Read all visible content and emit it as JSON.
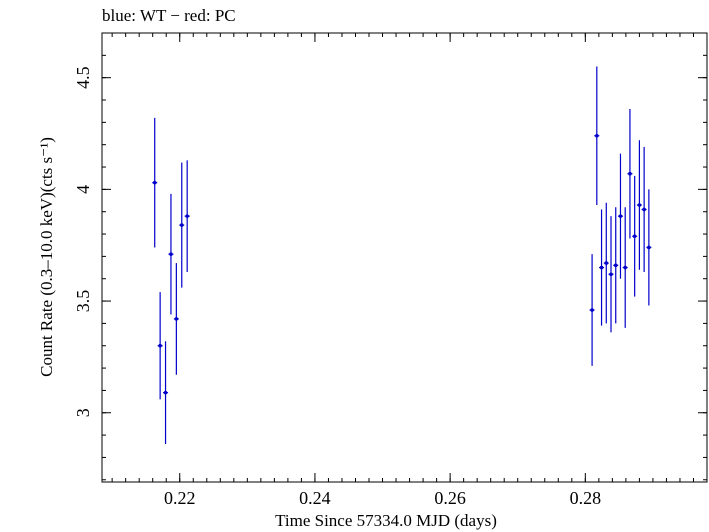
{
  "chart_data": {
    "type": "scatter",
    "title": "blue: WT − red: PC",
    "xlabel": "Time Since 57334.0 MJD (days)",
    "ylabel": "Count Rate (0.3–10.0 keV)(cts s⁻¹)",
    "xlim": [
      0.2085,
      0.298
    ],
    "ylim": [
      2.69,
      4.7
    ],
    "x_ticks": [
      0.22,
      0.24,
      0.26,
      0.28
    ],
    "x_tick_labels": [
      "0.22",
      "0.24",
      "0.26",
      "0.28"
    ],
    "y_ticks": [
      3,
      3.5,
      4,
      4.5
    ],
    "y_tick_labels": [
      "3",
      "3.5",
      "4",
      "4.5"
    ],
    "x_minor_step": 0.002,
    "y_minor_step": 0.1,
    "grid": false,
    "series": [
      {
        "name": "WT",
        "color": "#0000cc",
        "points": [
          {
            "x": 0.2163,
            "y": 4.03,
            "yerr": 0.29
          },
          {
            "x": 0.2171,
            "y": 3.3,
            "yerr": 0.24
          },
          {
            "x": 0.2179,
            "y": 3.09,
            "yerr": 0.23
          },
          {
            "x": 0.2187,
            "y": 3.71,
            "yerr": 0.27
          },
          {
            "x": 0.2195,
            "y": 3.42,
            "yerr": 0.25
          },
          {
            "x": 0.2203,
            "y": 3.84,
            "yerr": 0.28
          },
          {
            "x": 0.2211,
            "y": 3.88,
            "yerr": 0.25
          },
          {
            "x": 0.281,
            "y": 3.46,
            "yerr": 0.25
          },
          {
            "x": 0.2817,
            "y": 4.24,
            "yerr": 0.31
          },
          {
            "x": 0.2824,
            "y": 3.65,
            "yerr": 0.26
          },
          {
            "x": 0.2831,
            "y": 3.67,
            "yerr": 0.27
          },
          {
            "x": 0.2838,
            "y": 3.62,
            "yerr": 0.26
          },
          {
            "x": 0.2845,
            "y": 3.66,
            "yerr": 0.26
          },
          {
            "x": 0.2852,
            "y": 3.88,
            "yerr": 0.28
          },
          {
            "x": 0.2859,
            "y": 3.65,
            "yerr": 0.27
          },
          {
            "x": 0.2866,
            "y": 4.07,
            "yerr": 0.29
          },
          {
            "x": 0.2873,
            "y": 3.79,
            "yerr": 0.27
          },
          {
            "x": 0.288,
            "y": 3.93,
            "yerr": 0.29
          },
          {
            "x": 0.2887,
            "y": 3.91,
            "yerr": 0.28
          },
          {
            "x": 0.2894,
            "y": 3.74,
            "yerr": 0.26
          }
        ]
      }
    ]
  }
}
